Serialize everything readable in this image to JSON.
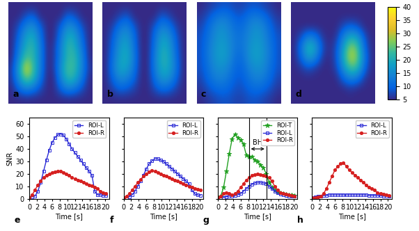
{
  "chart_data": [
    {
      "type": "heatmap",
      "label": "a",
      "color_range": [
        5,
        40
      ],
      "cells": [
        [
          5,
          5,
          5,
          5,
          5,
          5,
          5,
          5,
          5,
          5,
          5,
          5
        ],
        [
          5,
          5,
          8,
          10,
          5,
          5,
          5,
          5,
          10,
          8,
          5,
          5
        ],
        [
          5,
          8,
          14,
          16,
          10,
          5,
          5,
          10,
          16,
          14,
          8,
          5
        ],
        [
          5,
          10,
          18,
          20,
          12,
          5,
          5,
          12,
          20,
          18,
          10,
          5
        ],
        [
          5,
          12,
          20,
          22,
          14,
          5,
          6,
          14,
          22,
          20,
          12,
          5
        ],
        [
          5,
          14,
          24,
          22,
          14,
          5,
          6,
          14,
          22,
          22,
          14,
          5
        ],
        [
          6,
          18,
          32,
          24,
          14,
          5,
          6,
          16,
          24,
          22,
          14,
          6
        ],
        [
          6,
          16,
          26,
          22,
          12,
          5,
          5,
          14,
          22,
          20,
          12,
          5
        ],
        [
          5,
          10,
          14,
          12,
          8,
          5,
          5,
          10,
          14,
          12,
          8,
          5
        ],
        [
          5,
          5,
          5,
          5,
          5,
          5,
          5,
          5,
          5,
          5,
          5,
          5
        ]
      ]
    },
    {
      "type": "heatmap",
      "label": "b",
      "color_range": [
        5,
        40
      ],
      "cells": [
        [
          5,
          5,
          5,
          5,
          5,
          5,
          5,
          5,
          5,
          5,
          5,
          5
        ],
        [
          5,
          5,
          7,
          9,
          5,
          5,
          5,
          5,
          9,
          7,
          5,
          5
        ],
        [
          5,
          7,
          12,
          14,
          9,
          5,
          5,
          9,
          14,
          12,
          7,
          5
        ],
        [
          5,
          9,
          15,
          17,
          11,
          5,
          5,
          11,
          18,
          16,
          9,
          5
        ],
        [
          5,
          10,
          17,
          19,
          12,
          5,
          5,
          12,
          20,
          18,
          10,
          5
        ],
        [
          5,
          11,
          18,
          20,
          13,
          5,
          5,
          13,
          21,
          19,
          11,
          5
        ],
        [
          5,
          12,
          19,
          18,
          12,
          5,
          5,
          13,
          20,
          19,
          12,
          5
        ],
        [
          5,
          10,
          15,
          14,
          10,
          5,
          5,
          11,
          17,
          16,
          10,
          5
        ],
        [
          5,
          7,
          10,
          9,
          7,
          5,
          5,
          8,
          11,
          10,
          7,
          5
        ],
        [
          5,
          5,
          5,
          5,
          5,
          5,
          5,
          5,
          5,
          5,
          5,
          5
        ]
      ]
    },
    {
      "type": "heatmap",
      "label": "c",
      "color_range": [
        5,
        40
      ],
      "cells": [
        [
          5,
          6,
          7,
          8,
          8,
          7,
          7,
          8,
          8,
          7,
          6,
          5
        ],
        [
          6,
          8,
          11,
          13,
          12,
          9,
          9,
          12,
          13,
          11,
          8,
          6
        ],
        [
          7,
          10,
          14,
          16,
          14,
          11,
          11,
          14,
          16,
          14,
          10,
          7
        ],
        [
          8,
          11,
          15,
          17,
          15,
          12,
          12,
          15,
          17,
          15,
          11,
          8
        ],
        [
          8,
          12,
          16,
          18,
          16,
          12,
          12,
          16,
          18,
          16,
          12,
          8
        ],
        [
          8,
          12,
          16,
          18,
          16,
          11,
          11,
          16,
          18,
          16,
          12,
          8
        ],
        [
          8,
          11,
          15,
          16,
          14,
          10,
          10,
          14,
          16,
          15,
          11,
          8
        ],
        [
          7,
          10,
          13,
          14,
          12,
          9,
          9,
          12,
          14,
          13,
          10,
          7
        ],
        [
          6,
          8,
          10,
          11,
          10,
          8,
          8,
          10,
          11,
          10,
          8,
          6
        ],
        [
          5,
          6,
          7,
          8,
          8,
          7,
          7,
          8,
          8,
          7,
          6,
          5
        ]
      ]
    },
    {
      "type": "heatmap",
      "label": "d",
      "color_range": [
        5,
        40
      ],
      "colorbar_ticks": [
        5,
        10,
        15,
        20,
        25,
        30,
        35,
        40
      ],
      "cells": [
        [
          5,
          5,
          5,
          5,
          5,
          5,
          5,
          5,
          5,
          5,
          5,
          5
        ],
        [
          5,
          5,
          5,
          5,
          5,
          5,
          5,
          5,
          5,
          5,
          5,
          5
        ],
        [
          5,
          5,
          5,
          5,
          5,
          5,
          5,
          8,
          10,
          8,
          5,
          5
        ],
        [
          5,
          8,
          14,
          12,
          6,
          5,
          6,
          14,
          20,
          18,
          8,
          5
        ],
        [
          5,
          12,
          22,
          18,
          8,
          5,
          8,
          18,
          28,
          24,
          10,
          5
        ],
        [
          5,
          10,
          18,
          14,
          6,
          5,
          8,
          20,
          30,
          26,
          12,
          5
        ],
        [
          5,
          6,
          8,
          6,
          5,
          5,
          7,
          16,
          24,
          22,
          10,
          5
        ],
        [
          5,
          5,
          5,
          5,
          5,
          5,
          5,
          10,
          14,
          12,
          6,
          5
        ],
        [
          5,
          5,
          5,
          5,
          5,
          5,
          5,
          5,
          6,
          5,
          5,
          5
        ],
        [
          5,
          5,
          5,
          5,
          5,
          5,
          5,
          5,
          5,
          5,
          5,
          5
        ]
      ]
    },
    {
      "type": "line",
      "label": "e",
      "x_label": "Time [s]",
      "y_label": "SNR",
      "xlim": [
        0,
        21
      ],
      "ylim": [
        0,
        65
      ],
      "xticks": [
        0,
        2,
        4,
        6,
        8,
        10,
        12,
        14,
        16,
        18,
        20
      ],
      "yticks": [
        0,
        10,
        20,
        30,
        40,
        50,
        60
      ],
      "legend": "upper right",
      "x": [
        0,
        0.75,
        1.5,
        2.25,
        3,
        3.75,
        4.5,
        5.25,
        6,
        6.75,
        7.5,
        8.25,
        9,
        9.75,
        10.5,
        11.25,
        12,
        12.75,
        13.5,
        14.25,
        15,
        15.75,
        16.5,
        17.25,
        18,
        18.75,
        19.5,
        20.25
      ],
      "series": [
        {
          "name": "ROI-L",
          "color": "#2b2bd6",
          "marker": "square",
          "values": [
            1,
            1.5,
            2,
            6,
            13,
            22,
            31,
            39,
            45,
            49,
            51.5,
            52,
            51,
            48,
            44,
            40,
            37,
            34,
            31,
            28,
            25,
            22,
            19,
            6,
            3,
            3,
            2.5,
            2.5
          ]
        },
        {
          "name": "ROI-R",
          "color": "#d62020",
          "marker": "circle",
          "values": [
            1,
            3,
            7,
            11,
            14,
            17,
            19,
            20,
            21,
            21.5,
            22,
            22,
            21,
            20,
            18.5,
            17,
            16,
            15,
            14,
            13,
            12,
            11,
            10.5,
            9.5,
            8,
            6,
            5,
            4
          ]
        }
      ]
    },
    {
      "type": "line",
      "label": "f",
      "x_label": "Time [s]",
      "tick_labels": "x",
      "xlim": [
        0,
        21
      ],
      "ylim": [
        0,
        65
      ],
      "xticks": [
        0,
        2,
        4,
        6,
        8,
        10,
        12,
        14,
        16,
        18,
        20
      ],
      "yticks": [
        0,
        10,
        20,
        30,
        40,
        50,
        60
      ],
      "legend": "upper right",
      "x": [
        0,
        0.75,
        1.5,
        2.25,
        3,
        3.75,
        4.5,
        5.25,
        6,
        6.75,
        7.5,
        8.25,
        9,
        9.75,
        10.5,
        11.25,
        12,
        12.75,
        13.5,
        14.25,
        15,
        15.75,
        16.5,
        17.25,
        18,
        18.75,
        19.5,
        20.25
      ],
      "series": [
        {
          "name": "ROI-L",
          "color": "#2b2bd6",
          "marker": "square",
          "values": [
            1,
            1,
            1.5,
            3,
            6,
            10,
            14,
            19,
            24,
            28,
            30.5,
            32,
            32,
            31,
            30,
            28,
            26,
            24,
            22,
            20,
            18,
            16,
            14,
            12,
            7,
            4,
            3,
            2.5
          ]
        },
        {
          "name": "ROI-R",
          "color": "#d62020",
          "marker": "circle",
          "values": [
            1,
            2,
            4,
            7,
            10,
            13,
            15.5,
            18,
            20,
            21.5,
            22.5,
            22,
            21,
            20,
            19,
            18,
            17,
            16,
            15,
            14,
            13,
            12,
            11,
            10,
            9,
            8,
            7.5,
            7
          ]
        }
      ]
    },
    {
      "type": "line",
      "label": "g",
      "x_label": "Time [s]",
      "tick_labels": "x",
      "xlim": [
        0,
        21
      ],
      "ylim": [
        0,
        65
      ],
      "xticks": [
        0,
        2,
        4,
        6,
        8,
        10,
        12,
        14,
        16,
        18,
        20
      ],
      "yticks": [
        0,
        10,
        20,
        30,
        40,
        50,
        60
      ],
      "legend": "upper right",
      "annotations": [
        {
          "text": "BH",
          "x_range": [
            8.2,
            12.8
          ],
          "y": 40
        }
      ],
      "x": [
        0,
        0.75,
        1.5,
        2.25,
        3,
        3.75,
        4.5,
        5.25,
        6,
        6.75,
        7.5,
        8.25,
        9,
        9.75,
        10.5,
        11.25,
        12,
        12.75,
        13.5,
        14.25,
        15,
        15.75,
        16.5,
        17.25,
        18,
        18.75,
        19.5,
        20.25
      ],
      "series": [
        {
          "name": "ROI-T",
          "color": "#22a022",
          "marker": "asterisk",
          "values": [
            1,
            2,
            9,
            22,
            36,
            48,
            52,
            49,
            47,
            44,
            35,
            34,
            34,
            31,
            30,
            27,
            25,
            20,
            13,
            9,
            7,
            5.5,
            4.5,
            4,
            3.5,
            3,
            3,
            2.5
          ]
        },
        {
          "name": "ROI-L",
          "color": "#2b2bd6",
          "marker": "square",
          "values": [
            1,
            1,
            1,
            1.5,
            2,
            2,
            2.5,
            3,
            4,
            6,
            8,
            10,
            11.5,
            12.5,
            13,
            13,
            12.5,
            12,
            10,
            8,
            6,
            4.5,
            3.5,
            3,
            2.5,
            2,
            2,
            2
          ]
        },
        {
          "name": "ROI-R",
          "color": "#d62020",
          "marker": "circle",
          "values": [
            1,
            2,
            4,
            5,
            4,
            3,
            4,
            6,
            9,
            12,
            15,
            17,
            18.5,
            19.5,
            20,
            19.5,
            19,
            18,
            17,
            14,
            10,
            7,
            5,
            4,
            3.5,
            3,
            2.5,
            2
          ]
        }
      ]
    },
    {
      "type": "line",
      "label": "h",
      "x_label": "Time [s]",
      "tick_labels": "x",
      "xlim": [
        0,
        21
      ],
      "ylim": [
        0,
        65
      ],
      "xticks": [
        0,
        2,
        4,
        6,
        8,
        10,
        12,
        14,
        16,
        18,
        20
      ],
      "yticks": [
        0,
        10,
        20,
        30,
        40,
        50,
        60
      ],
      "legend": "upper right",
      "x": [
        0,
        0.75,
        1.5,
        2.25,
        3,
        3.75,
        4.5,
        5.25,
        6,
        6.75,
        7.5,
        8.25,
        9,
        9.75,
        10.5,
        11.25,
        12,
        12.75,
        13.5,
        14.25,
        15,
        15.75,
        16.5,
        17.25,
        18,
        18.75,
        19.5,
        20.25
      ],
      "series": [
        {
          "name": "ROI-L",
          "color": "#2b2bd6",
          "marker": "square",
          "values": [
            1,
            1.5,
            2,
            2,
            2.5,
            2.5,
            3,
            3,
            3,
            3,
            3,
            3,
            3,
            3,
            3,
            3,
            3,
            3,
            3,
            3,
            2.5,
            2.5,
            2.5,
            2.5,
            2.5,
            2,
            2,
            2
          ]
        },
        {
          "name": "ROI-R",
          "color": "#d62020",
          "marker": "circle",
          "values": [
            1,
            1,
            1.5,
            2,
            4,
            8,
            13,
            18,
            23,
            26,
            28,
            29,
            26,
            23,
            21,
            19,
            17,
            15,
            13,
            11,
            9,
            8,
            7,
            5,
            4,
            3.5,
            3,
            2.5
          ]
        }
      ]
    }
  ]
}
